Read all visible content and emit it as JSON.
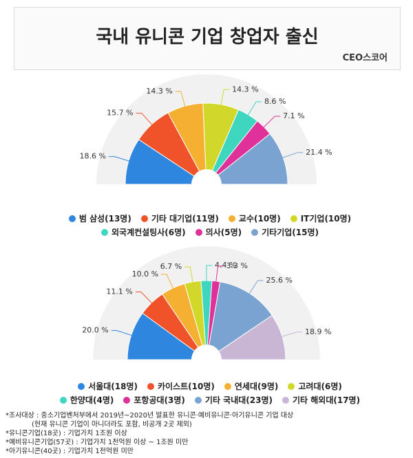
{
  "header": {
    "title": "국내 유니콘 기업 창업자 출신",
    "source": "CEO스코어"
  },
  "chart_data": [
    {
      "type": "pie",
      "half": true,
      "categories": [
        "범 삼성(13명)",
        "기타 대기업(11명)",
        "교수(10명)",
        "IT기업(10명)",
        "외국계컨설팅사(6명)",
        "의사(5명)",
        "기타기업(15명)"
      ],
      "values": [
        18.6,
        15.7,
        14.3,
        14.3,
        8.6,
        7.1,
        21.4
      ],
      "value_labels": [
        "18.6 %",
        "15.7 %",
        "14.3 %",
        "14.3 %",
        "8.6 %",
        "7.1 %",
        "21.4 %"
      ],
      "colors": [
        "#2e86de",
        "#f0522a",
        "#f5b031",
        "#d2d82a",
        "#3fd6c0",
        "#e0309a",
        "#7ba3d2"
      ]
    },
    {
      "type": "pie",
      "half": true,
      "categories": [
        "서울대(18명)",
        "카이스트(10명)",
        "연세대(9명)",
        "고려대(6명)",
        "한양대(4명)",
        "포항공대(3명)",
        "기타 국내대(23명)",
        "기타 해외대(17명)"
      ],
      "values": [
        20.0,
        11.1,
        10.0,
        6.7,
        4.4,
        3.3,
        25.6,
        18.9
      ],
      "value_labels": [
        "20.0 %",
        "11.1 %",
        "10.0 %",
        "6.7 %",
        "4.4 %",
        "3.3 %",
        "25.6 %",
        "18.9 %"
      ],
      "colors": [
        "#2e86de",
        "#f0522a",
        "#f5b031",
        "#d2d82a",
        "#3fd6c0",
        "#e0309a",
        "#7ba3d2",
        "#c9b6d4"
      ]
    }
  ],
  "notes": [
    "*조사대상 : 중소기업벤처부에서 2019년~2020년 발표한 유니콘·예비유니콘·아기유니콘 기업 대상",
    "(현재 유니콘 기업이 아니더라도 포함, 비공개 2곳 제외)",
    "*유니콘기업(18곳) : 기업가치 1조원 이상",
    "*예비유니콘기업(57곳) : 기업가치 1천억원 이상 ~ 1조원 미만",
    "*아기유니콘(40곳) : 기업가치 1천억원 미만"
  ]
}
